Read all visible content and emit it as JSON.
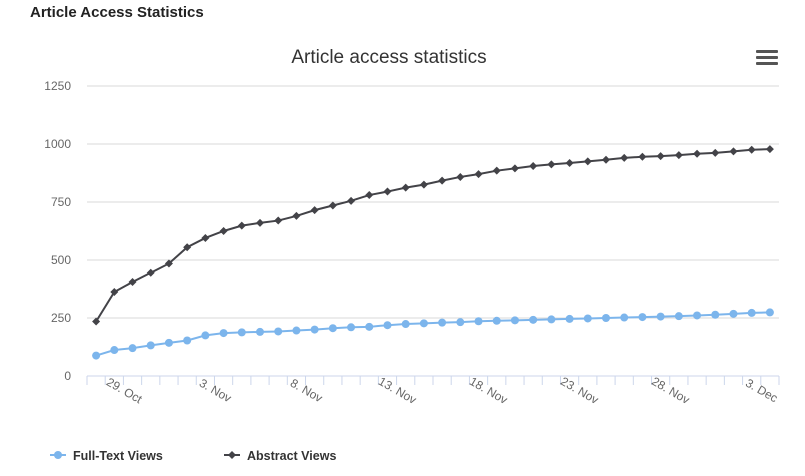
{
  "page": {
    "heading": "Article Access Statistics"
  },
  "menu": {
    "icon": "hamburger-menu-icon"
  },
  "chart_data": {
    "type": "line",
    "title": "Article access statistics",
    "xlabel": "",
    "ylabel": "",
    "ylim": [
      0,
      1250
    ],
    "yticks": [
      "0",
      "250",
      "500",
      "750",
      "1000",
      "1250"
    ],
    "grid": true,
    "legend_position": "bottom-left",
    "x": [
      "28 Oct",
      "29 Oct",
      "30 Oct",
      "31 Oct",
      "1 Nov",
      "2 Nov",
      "3 Nov",
      "4 Nov",
      "5 Nov",
      "6 Nov",
      "7 Nov",
      "8 Nov",
      "9 Nov",
      "10 Nov",
      "11 Nov",
      "12 Nov",
      "13 Nov",
      "14 Nov",
      "15 Nov",
      "16 Nov",
      "17 Nov",
      "18 Nov",
      "19 Nov",
      "20 Nov",
      "21 Nov",
      "22 Nov",
      "23 Nov",
      "24 Nov",
      "25 Nov",
      "26 Nov",
      "27 Nov",
      "28 Nov",
      "29 Nov",
      "30 Nov",
      "1 Dec",
      "2 Dec",
      "3 Dec",
      "4 Dec"
    ],
    "xticks": [
      "29. Oct",
      "3. Nov",
      "8. Nov",
      "13. Nov",
      "18. Nov",
      "23. Nov",
      "28. Nov",
      "3. Dec"
    ],
    "series": [
      {
        "name": "Full-Text Views",
        "color": "#7cb5ec",
        "marker": "circle",
        "values": [
          88,
          112,
          120,
          132,
          143,
          153,
          175,
          185,
          188,
          190,
          192,
          196,
          200,
          206,
          210,
          212,
          219,
          224,
          227,
          230,
          232,
          236,
          238,
          240,
          242,
          244,
          246,
          248,
          250,
          252,
          254,
          256,
          258,
          261,
          264,
          268,
          272,
          274
        ]
      },
      {
        "name": "Abstract Views",
        "color": "#434348",
        "marker": "diamond",
        "values": [
          235,
          362,
          405,
          445,
          485,
          555,
          595,
          625,
          648,
          660,
          670,
          690,
          715,
          735,
          755,
          780,
          795,
          812,
          825,
          842,
          858,
          870,
          885,
          895,
          905,
          912,
          918,
          925,
          932,
          940,
          945,
          948,
          952,
          958,
          962,
          968,
          975,
          978
        ]
      }
    ]
  }
}
